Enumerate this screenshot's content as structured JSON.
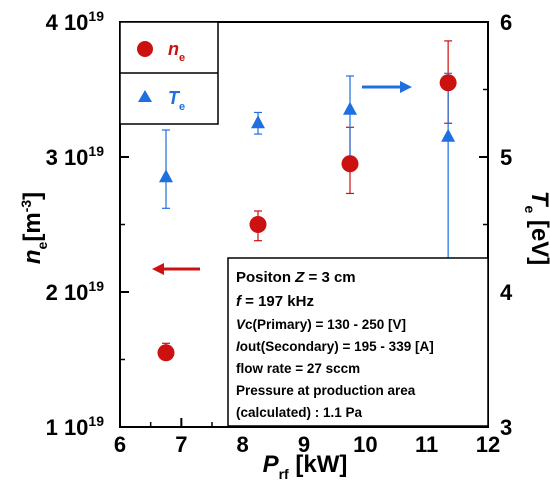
{
  "chart_data": {
    "type": "scatter",
    "x_axis": {
      "label": "P",
      "label_subscript": "rf",
      "unit": " [kW]",
      "range": [
        6,
        12
      ],
      "ticks": [
        "6",
        "7",
        "8",
        "9",
        "10",
        "11",
        "12"
      ]
    },
    "y_left": {
      "label": "n",
      "label_subscript": "e",
      "unit": "[m",
      "unit_sup": "-3",
      "unit_close": "]",
      "range": [
        1e+19,
        4e+19
      ],
      "ticks": [
        {
          "mant": "1 10",
          "exp": "19",
          "value": 1e+19
        },
        {
          "mant": "2 10",
          "exp": "19",
          "value": 2e+19
        },
        {
          "mant": "3 10",
          "exp": "19",
          "value": 3e+19
        },
        {
          "mant": "4 10",
          "exp": "19",
          "value": 4e+19
        }
      ]
    },
    "y_right": {
      "label": "T",
      "label_subscript": "e",
      "unit": " [eV]",
      "range": [
        3,
        6
      ],
      "ticks": [
        "3",
        "4",
        "5",
        "6"
      ]
    },
    "series": [
      {
        "name": "n",
        "name_subscript": "e",
        "axis": "left",
        "color": "#cc1111",
        "marker": "circle",
        "x": [
          6.75,
          8.25,
          9.75,
          11.35
        ],
        "y": [
          1.55e+19,
          2.5e+19,
          2.95e+19,
          3.55e+19
        ],
        "err_low": [
          1.5e+19,
          2.38e+19,
          2.73e+19,
          3.25e+19
        ],
        "err_high": [
          1.62e+19,
          2.6e+19,
          3.22e+19,
          3.86e+19
        ]
      },
      {
        "name": "T",
        "name_subscript": "e",
        "axis": "right",
        "color": "#1f6fe0",
        "marker": "triangle",
        "x": [
          6.75,
          8.25,
          9.75,
          11.35
        ],
        "y": [
          4.85,
          5.25,
          5.35,
          5.15
        ],
        "err_low": [
          4.62,
          5.17,
          5.0,
          4.25
        ],
        "err_high": [
          5.2,
          5.33,
          5.6,
          5.62
        ]
      }
    ],
    "arrows": {
      "left_arrow_color": "#cc1111",
      "right_arrow_color": "#1f6fe0"
    },
    "legend_placement": "top-left",
    "annotation": {
      "line1_prefix": "Positon ",
      "line1_var": "Z",
      "line1_suffix": " = 3 cm",
      "line2_var": "f",
      "line2_suffix": " = 197 kHz",
      "line3_var": "V",
      "line3_suffix": "c(Primary) = 130 - 250 [V]",
      "line4_var": "I",
      "line4_suffix": "out(Secondary) = 195 - 339 [A]",
      "line5": "flow rate = 27 sccm",
      "line6": "Pressure at production area",
      "line7": "(calculated) : 1.1 Pa"
    },
    "grid": false
  }
}
